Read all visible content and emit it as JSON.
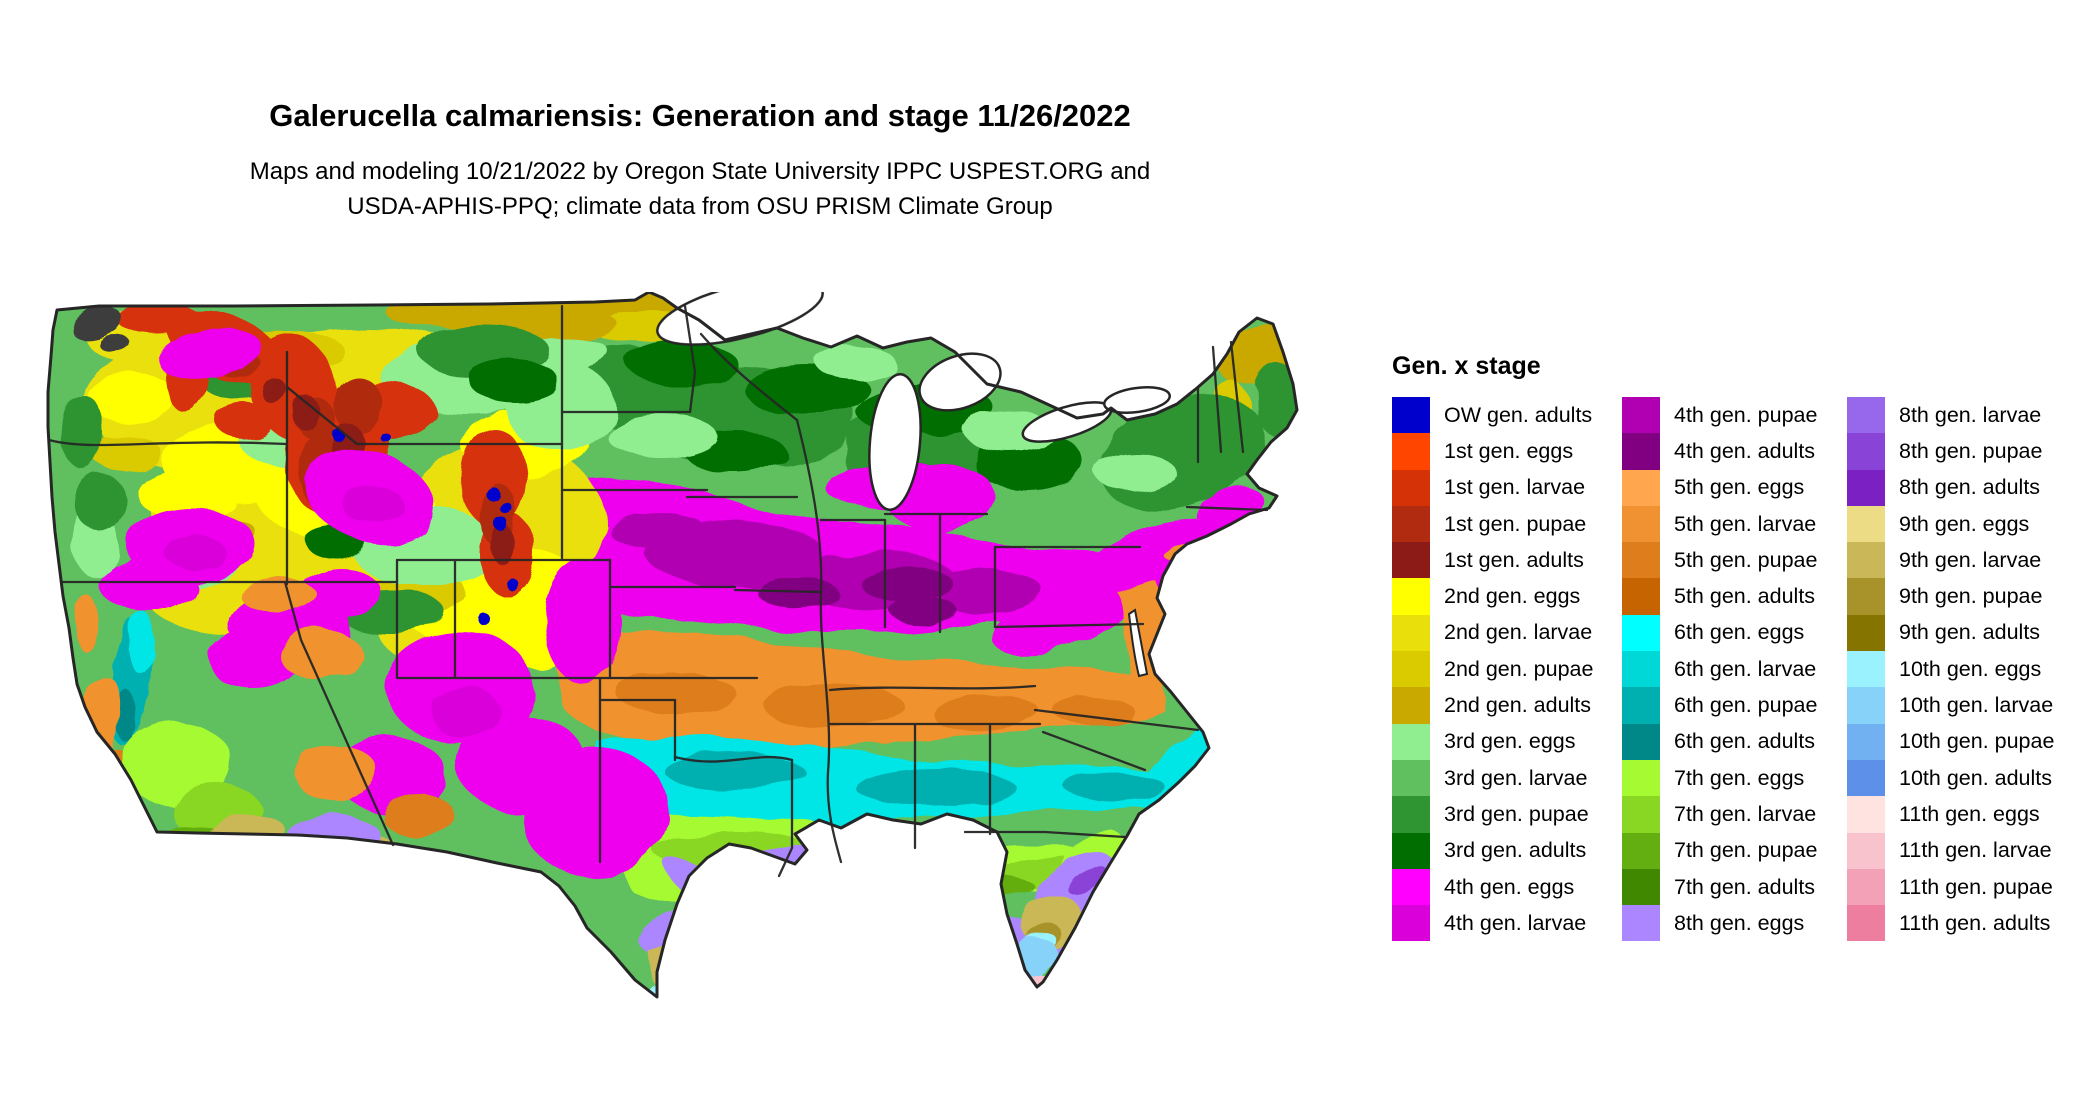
{
  "header": {
    "title": "Galerucella calmariensis: Generation and stage 11/26/2022",
    "subtitle_line1": "Maps and modeling 10/21/2022 by Oregon State University IPPC USPEST.ORG and",
    "subtitle_line2": "USDA-APHIS-PPQ; climate data from OSU PRISM Climate Group"
  },
  "map": {
    "region": "Continental United States",
    "background": "#FFFFFF",
    "state_border_color": "#262626"
  },
  "legend": {
    "title": "Gen. x stage",
    "columns": [
      [
        {
          "label": "OW gen. adults",
          "color": "#0000CC"
        },
        {
          "label": "1st gen. eggs",
          "color": "#FF4500"
        },
        {
          "label": "1st gen. larvae",
          "color": "#D53307"
        },
        {
          "label": "1st gen. pupae",
          "color": "#B02B10"
        },
        {
          "label": "1st gen. adults",
          "color": "#8C1A16"
        },
        {
          "label": "2nd gen. eggs",
          "color": "#FFFF00"
        },
        {
          "label": "2nd gen. larvae",
          "color": "#E9E00B"
        },
        {
          "label": "2nd gen. pupae",
          "color": "#DACA00"
        },
        {
          "label": "2nd gen. adults",
          "color": "#C9A900"
        },
        {
          "label": "3rd gen. eggs",
          "color": "#90EE90"
        },
        {
          "label": "3rd gen. larvae",
          "color": "#60C060"
        },
        {
          "label": "3rd gen. pupae",
          "color": "#2F9432"
        },
        {
          "label": "3rd gen. adults",
          "color": "#006E00"
        },
        {
          "label": "4th gen. eggs",
          "color": "#FF00FF"
        },
        {
          "label": "4th gen. larvae",
          "color": "#DA00DA"
        }
      ],
      [
        {
          "label": "4th gen. pupae",
          "color": "#B100B1"
        },
        {
          "label": "4th gen. adults",
          "color": "#810081"
        },
        {
          "label": "5th gen. eggs",
          "color": "#FFA64F"
        },
        {
          "label": "5th gen. larvae",
          "color": "#F09232"
        },
        {
          "label": "5th gen. pupae",
          "color": "#DD7D1B"
        },
        {
          "label": "5th gen. adults",
          "color": "#C66402"
        },
        {
          "label": "6th gen. eggs",
          "color": "#00FFFF"
        },
        {
          "label": "6th gen. larvae",
          "color": "#00D8D8"
        },
        {
          "label": "6th gen. pupae",
          "color": "#00B0B0"
        },
        {
          "label": "6th gen. adults",
          "color": "#008888"
        },
        {
          "label": "7th gen. eggs",
          "color": "#A6FA31"
        },
        {
          "label": "7th gen. larvae",
          "color": "#89D723"
        },
        {
          "label": "7th gen. pupae",
          "color": "#63AE11"
        },
        {
          "label": "7th gen. adults",
          "color": "#3F8800"
        },
        {
          "label": "8th gen. eggs",
          "color": "#AC86FF"
        }
      ],
      [
        {
          "label": "8th gen. larvae",
          "color": "#9767EC"
        },
        {
          "label": "8th gen. pupae",
          "color": "#8A43D7"
        },
        {
          "label": "8th gen. adults",
          "color": "#7B20C3"
        },
        {
          "label": "9th gen. eggs",
          "color": "#EDDC86"
        },
        {
          "label": "9th gen. larvae",
          "color": "#CAB757"
        },
        {
          "label": "9th gen. pupae",
          "color": "#A8932B"
        },
        {
          "label": "9th gen. adults",
          "color": "#867400"
        },
        {
          "label": "10th gen. eggs",
          "color": "#9AF2FF"
        },
        {
          "label": "10th gen. larvae",
          "color": "#86D2F8"
        },
        {
          "label": "10th gen. pupae",
          "color": "#71B1F1"
        },
        {
          "label": "10th gen. adults",
          "color": "#5D90E9"
        },
        {
          "label": "11th gen. eggs",
          "color": "#FFE3E1"
        },
        {
          "label": "11th gen. larvae",
          "color": "#F9C3CD"
        },
        {
          "label": "11th gen. pupae",
          "color": "#F2A1B6"
        },
        {
          "label": "11th gen. adults",
          "color": "#ED7E9F"
        }
      ]
    ]
  }
}
